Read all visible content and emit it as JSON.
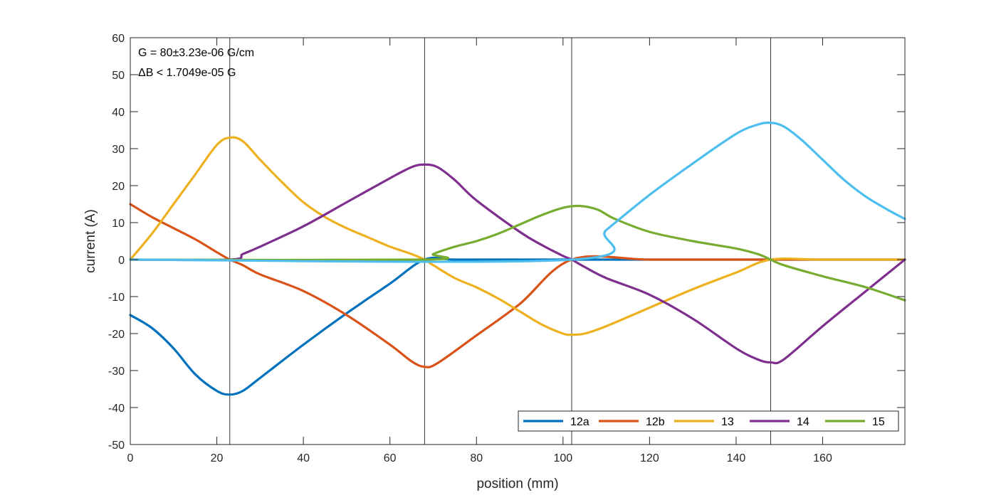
{
  "chart_data": {
    "type": "line",
    "title": "",
    "xlabel": "position (mm)",
    "ylabel": "current (A)",
    "xlim": [
      0,
      179
    ],
    "ylim": [
      -50,
      60
    ],
    "xticks": [
      0,
      20,
      40,
      60,
      80,
      100,
      120,
      140,
      160
    ],
    "yticks": [
      -50,
      -40,
      -30,
      -20,
      -10,
      0,
      10,
      20,
      30,
      40,
      50,
      60
    ],
    "grid": false,
    "legend_placement": "bottom-right",
    "annotations": [
      "G = 80±3.23e-06 G/cm",
      "ΔB < 1.7049e-05 G"
    ],
    "vertical_lines": [
      23,
      68,
      102,
      148
    ],
    "series": [
      {
        "name": "12a",
        "color": "#0072BD",
        "x": [
          0,
          5,
          10,
          15,
          20,
          23,
          26,
          30,
          40,
          50,
          60,
          68,
          75,
          90,
          102,
          179
        ],
        "y": [
          -15,
          -18.5,
          -24,
          -31,
          -35.5,
          -36.5,
          -35.5,
          -32,
          -23,
          -14.5,
          -6.5,
          0,
          0,
          0,
          0,
          0
        ]
      },
      {
        "name": "12b",
        "color": "#D95319",
        "x": [
          0,
          5,
          10,
          15,
          20,
          23,
          26,
          30,
          40,
          50,
          60,
          65,
          68,
          71,
          80,
          90,
          102,
          120,
          140,
          179
        ],
        "y": [
          15,
          11.5,
          8.5,
          5.5,
          2,
          0,
          -1.5,
          -4,
          -8.5,
          -15,
          -23,
          -27.5,
          -29,
          -28,
          -20.5,
          -12,
          0,
          0,
          0,
          0
        ]
      },
      {
        "name": "13",
        "color": "#EDB120",
        "x": [
          0,
          5,
          10,
          15,
          20,
          23,
          26,
          30,
          35,
          40,
          45,
          50,
          55,
          60,
          65,
          68,
          70,
          75,
          80,
          85,
          90,
          95,
          100,
          102,
          105,
          110,
          120,
          130,
          140,
          148,
          160,
          179
        ],
        "y": [
          0,
          7,
          15,
          23,
          31,
          33,
          32,
          27,
          21,
          15.5,
          11.5,
          8.5,
          6,
          3.5,
          1.5,
          0,
          -1.5,
          -5,
          -7.5,
          -10.5,
          -14,
          -17.5,
          -20,
          -20.3,
          -20,
          -18,
          -13,
          -8,
          -3.5,
          0,
          0,
          0
        ]
      },
      {
        "name": "14",
        "color": "#7E2F8E",
        "x": [
          0,
          23,
          26,
          30,
          40,
          50,
          60,
          65,
          68,
          71,
          75,
          80,
          90,
          95,
          100,
          102,
          105,
          110,
          120,
          130,
          140,
          145,
          148,
          151,
          160,
          170,
          179
        ],
        "y": [
          0,
          0,
          1.5,
          3.5,
          9,
          15.5,
          22,
          25,
          25.7,
          25,
          21.5,
          16,
          7.5,
          4,
          1,
          0,
          -2,
          -5,
          -9.5,
          -16,
          -24,
          -27,
          -27.8,
          -27,
          -18,
          -8.5,
          0
        ]
      },
      {
        "name": "15",
        "color": "#77AC30",
        "x": [
          0,
          68,
          70,
          75,
          80,
          85,
          90,
          95,
          100,
          104,
          108,
          112,
          120,
          130,
          140,
          145,
          148,
          151,
          160,
          170,
          179
        ],
        "y": [
          0,
          0,
          1.5,
          3.5,
          5,
          7,
          9.5,
          12,
          14,
          14.5,
          13.5,
          11,
          7.5,
          5,
          3,
          1.5,
          0,
          -1.5,
          -4.5,
          -7.5,
          -11
        ]
      },
      {
        "name": "",
        "color": "#4DBEEE",
        "x": [
          0,
          102,
          110,
          120,
          130,
          140,
          145,
          148,
          151,
          155,
          160,
          165,
          170,
          175,
          179
        ],
        "y": [
          0,
          0,
          8,
          17.5,
          26,
          34,
          36.5,
          37,
          36,
          32.5,
          27,
          21.5,
          17,
          13.5,
          11
        ]
      }
    ]
  }
}
